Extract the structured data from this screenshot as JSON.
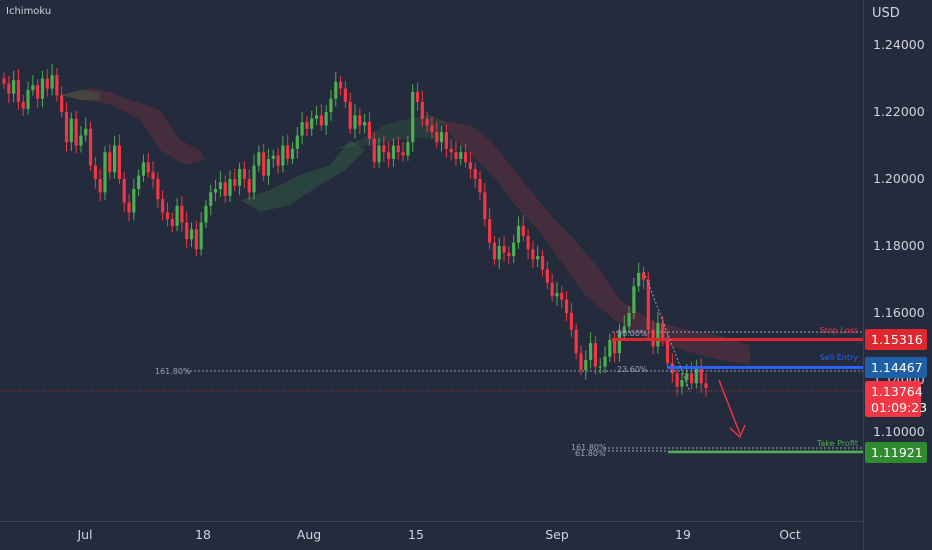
{
  "indicator": "Ichimoku",
  "currency": "USD",
  "price_tags": {
    "stop_loss": "1.15316",
    "sell_entry": "1.14467",
    "current_price": "1.13764",
    "countdown": "01:09:23",
    "take_profit": "1.11921",
    "hidden_price": "1.14000"
  },
  "annotations": {
    "stop_loss_label": "Stop Loss",
    "sell_entry_label": "Sell Entry",
    "take_profit_label": "Take Profit",
    "fib_5000": "50.00%",
    "fib_2360": "23.60%",
    "fib_16180_left": "161.80%",
    "fib_16180_tp": "161.80%",
    "fib_6180_tp": "61.80%"
  },
  "colors": {
    "background": "#232b3c",
    "up": "#4caf50",
    "down": "#f23645",
    "stop": "#e0272f",
    "entry": "#2962ff",
    "tp": "#4caf50"
  },
  "chart_data": {
    "type": "candlestick",
    "title": "",
    "y_ticks": [
      "1.24000",
      "1.22000",
      "1.20000",
      "1.18000",
      "1.16000",
      "1.14000",
      "1.10000"
    ],
    "x_ticks": [
      "Jul",
      "18",
      "Aug",
      "15",
      "Sep",
      "19",
      "Oct"
    ],
    "ylim": [
      1.0995,
      1.2465
    ],
    "levels": {
      "stop_loss": 1.15316,
      "sell_entry": 1.14467,
      "current": 1.13764,
      "take_profit": 1.11921
    },
    "series_close": [
      1.2285,
      1.2255,
      1.2295,
      1.223,
      1.221,
      1.2265,
      1.228,
      1.224,
      1.23,
      1.227,
      1.231,
      1.225,
      1.22,
      1.211,
      1.218,
      1.21,
      1.213,
      1.215,
      1.204,
      1.2,
      1.196,
      1.208,
      1.202,
      1.21,
      1.2,
      1.193,
      1.19,
      1.197,
      1.201,
      1.205,
      1.202,
      1.2,
      1.194,
      1.19,
      1.188,
      1.186,
      1.192,
      1.187,
      1.182,
      1.185,
      1.179,
      1.187,
      1.192,
      1.196,
      1.197,
      1.199,
      1.195,
      1.2,
      1.198,
      1.203,
      1.2,
      1.196,
      1.204,
      1.208,
      1.201,
      1.206,
      1.207,
      1.204,
      1.21,
      1.206,
      1.209,
      1.213,
      1.217,
      1.215,
      1.218,
      1.219,
      1.216,
      1.22,
      1.224,
      1.229,
      1.227,
      1.223,
      1.215,
      1.219,
      1.216,
      1.217,
      1.212,
      1.205,
      1.21,
      1.208,
      1.206,
      1.21,
      1.208,
      1.207,
      1.211,
      1.226,
      1.223,
      1.218,
      1.216,
      1.214,
      1.211,
      1.214,
      1.209,
      1.208,
      1.206,
      1.208,
      1.205,
      1.203,
      1.2,
      1.196,
      1.188,
      1.181,
      1.176,
      1.18,
      1.178,
      1.177,
      1.181,
      1.186,
      1.183,
      1.179,
      1.176,
      1.177,
      1.173,
      1.169,
      1.165,
      1.166,
      1.164,
      1.16,
      1.155,
      1.148,
      1.143,
      1.146,
      1.151,
      1.144,
      1.144,
      1.147,
      1.152,
      1.148,
      1.154,
      1.156,
      1.16,
      1.168,
      1.172,
      1.17,
      1.155,
      1.15,
      1.157,
      1.152,
      1.145,
      1.142,
      1.138,
      1.14,
      1.142,
      1.139,
      1.144,
      1.139,
      1.1376
    ]
  }
}
